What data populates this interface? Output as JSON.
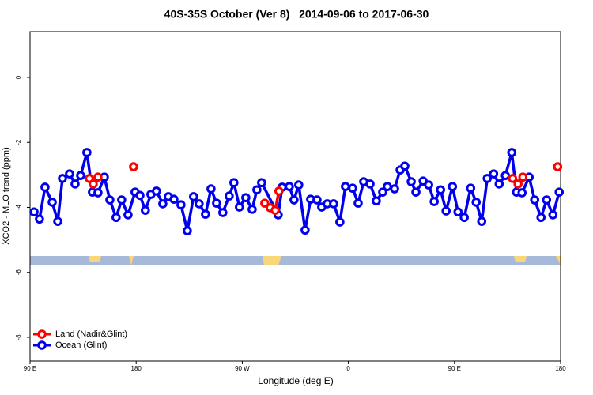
{
  "chart_data": {
    "type": "line",
    "title": "40S-35S October (Ver 8)   2014-09-06 to 2017-06-30",
    "x_label": "Longitude (deg E)",
    "y_label": "XCO2 - MLO trend (ppm)",
    "xlim": [
      90,
      540
    ],
    "ylim": [
      -8.73,
      1.41
    ],
    "xticks": [
      {
        "value": 90,
        "label": "90 E"
      },
      {
        "value": 180,
        "label": "180"
      },
      {
        "value": 270,
        "label": "90 W"
      },
      {
        "value": 360,
        "label": "0"
      },
      {
        "value": 450,
        "label": "90 E"
      },
      {
        "value": 540,
        "label": "180"
      }
    ],
    "yticks": [
      0,
      -2,
      -4,
      -6,
      -8
    ],
    "legend": "bottom-left",
    "series": [
      {
        "name": "Land (Nadir&Glint)",
        "color": "#ff0000",
        "x": [
          140.3,
          143.6,
          147.6,
          null,
          177.8,
          null,
          289.1,
          293.7,
          297.9,
          301.1,
          null,
          499.3,
          503.9,
          508.0,
          null,
          537.5
        ],
        "values": [
          -3.11,
          -3.28,
          -3.07,
          null,
          -2.75,
          null,
          -3.87,
          -4.01,
          -4.09,
          -3.5,
          null,
          -3.11,
          -3.28,
          -3.07,
          null,
          -2.75
        ]
      },
      {
        "name": "Ocean (Glint)",
        "color": "#0000ee",
        "x": [
          93.4,
          98.0,
          102.7,
          108.8,
          113.5,
          117.5,
          123.5,
          128.2,
          132.9,
          138.2,
          142.9,
          147.6,
          153.0,
          157.7,
          163.0,
          167.7,
          173.1,
          179.1,
          183.2,
          187.8,
          192.5,
          197.2,
          202.6,
          207.3,
          212.0,
          218.0,
          223.4,
          228.7,
          233.4,
          238.8,
          243.5,
          248.2,
          253.5,
          258.9,
          262.9,
          267.6,
          273.0,
          278.4,
          282.4,
          286.4,
          300.5,
          303.8,
          309.9,
          313.9,
          317.9,
          323.3,
          328.0,
          333.4,
          337.4,
          342.1,
          347.5,
          352.8,
          357.5,
          363.6,
          368.3,
          373.0,
          378.4,
          383.7,
          389.1,
          393.1,
          399.2,
          403.9,
          407.9,
          413.3,
          417.3,
          423.4,
          428.1,
          432.8,
          438.2,
          442.9,
          448.3,
          453.0,
          458.3,
          463.7,
          468.4,
          473.1,
          477.8,
          483.2,
          487.9,
          493.2,
          498.6,
          502.6,
          507.3,
          513.3,
          518.0,
          523.4,
          528.1,
          533.5,
          538.8
        ],
        "values": [
          -4.14,
          -4.36,
          -3.38,
          -3.84,
          -4.43,
          -3.11,
          -2.97,
          -3.28,
          -3.02,
          -2.31,
          -3.53,
          -3.55,
          -3.07,
          -3.77,
          -4.31,
          -3.77,
          -4.23,
          -3.53,
          -3.63,
          -4.09,
          -3.6,
          -3.5,
          -3.89,
          -3.67,
          -3.75,
          -3.92,
          -4.72,
          -3.67,
          -3.89,
          -4.21,
          -3.43,
          -3.87,
          -4.16,
          -3.65,
          -3.24,
          -3.99,
          -3.7,
          -4.06,
          -3.46,
          -3.24,
          -4.23,
          -3.38,
          -3.36,
          -3.77,
          -3.31,
          -4.7,
          -3.75,
          -3.77,
          -3.99,
          -3.89,
          -3.89,
          -4.45,
          -3.36,
          -3.41,
          -3.87,
          -3.21,
          -3.28,
          -3.8,
          -3.53,
          -3.36,
          -3.43,
          -2.85,
          -2.73,
          -3.21,
          -3.53,
          -3.19,
          -3.31,
          -3.82,
          -3.46,
          -4.11,
          -3.36,
          -4.14,
          -4.31,
          -3.41,
          -3.84,
          -4.43,
          -3.11,
          -2.97,
          -3.28,
          -3.02,
          -2.31,
          -3.53,
          -3.55,
          -3.07,
          -3.77,
          -4.31,
          -3.77,
          -4.23,
          -3.53
        ]
      }
    ]
  }
}
